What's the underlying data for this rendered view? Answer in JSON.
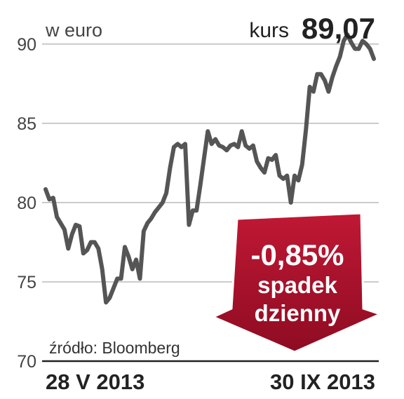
{
  "chart_data": {
    "type": "line",
    "y_label": "w euro",
    "price_label": "kurs",
    "price_value_label": "89,07",
    "change_label": "-0,85%",
    "change_text": [
      "spadek",
      "dzienny"
    ],
    "source": "źródło: Bloomberg",
    "categories": [
      "28 V 2013",
      null,
      null,
      null,
      null,
      null,
      null,
      null,
      null,
      null,
      null,
      null,
      null,
      null,
      null,
      null,
      null,
      null,
      null,
      null,
      null,
      null,
      null,
      null,
      null,
      null,
      null,
      null,
      null,
      null,
      null,
      null,
      null,
      null,
      null,
      null,
      null,
      null,
      null,
      null,
      null,
      null,
      null,
      null,
      null,
      null,
      null,
      null,
      null,
      null,
      null,
      null,
      null,
      null,
      null,
      null,
      null,
      null,
      null,
      null,
      null,
      null,
      null,
      null,
      null,
      null,
      null,
      null,
      null,
      null,
      null,
      null,
      null,
      null,
      null,
      null,
      null,
      null,
      null,
      null,
      null,
      null,
      null,
      null,
      null,
      null,
      null,
      "30 IX 2013"
    ],
    "series": [
      {
        "color": "#555555",
        "values": [
          80.84,
          80.2,
          80.3,
          79.1,
          78.7,
          78.3,
          77.1,
          78.0,
          78.6,
          78.5,
          76.8,
          77.0,
          77.5,
          77.5,
          77.1,
          75.8,
          73.7,
          74.0,
          74.6,
          75.2,
          75.2,
          77.2,
          76.6,
          75.8,
          76.4,
          75.2,
          78.2,
          78.7,
          79.0,
          79.4,
          79.7,
          80.0,
          80.6,
          82.2,
          83.5,
          83.7,
          83.5,
          83.7,
          78.6,
          79.5,
          79.5,
          81.1,
          82.8,
          84.5,
          83.7,
          84.0,
          83.6,
          83.5,
          83.3,
          83.6,
          83.7,
          83.5,
          84.5,
          83.6,
          83.4,
          83.6,
          82.6,
          82.2,
          81.9,
          82.8,
          82.7,
          83.0,
          81.7,
          81.5,
          81.7,
          80.0,
          81.7,
          81.4,
          82.4,
          84.6,
          87.3,
          87.0,
          88.1,
          88.1,
          87.7,
          87.0,
          87.9,
          88.6,
          89.2,
          90.2,
          90.6,
          90.1,
          89.7,
          89.7,
          90.2,
          90.0,
          89.7,
          89.07
        ]
      }
    ],
    "ylim": [
      70,
      90.7
    ],
    "yticks": [
      70,
      75,
      80,
      85,
      90
    ],
    "grid": true
  }
}
